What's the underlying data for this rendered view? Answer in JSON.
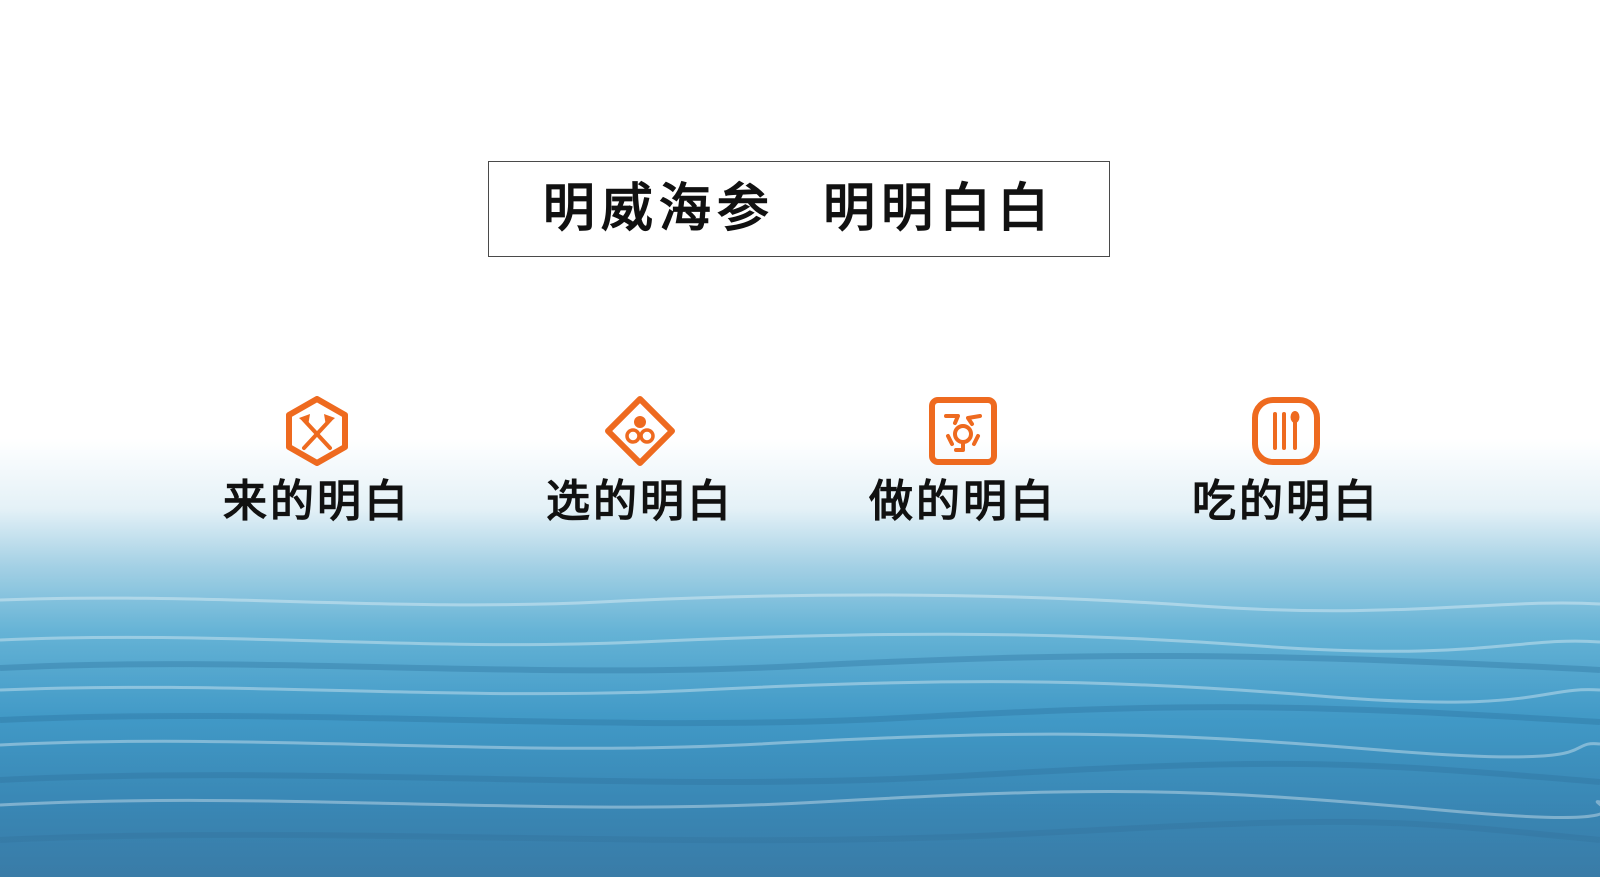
{
  "title": "明威海参  明明白白",
  "accent_color": "#ee6a1f",
  "features": [
    {
      "label": "来的明白",
      "icon": "crossed-axes-icon"
    },
    {
      "label": "选的明白",
      "icon": "sea-cucumber-select-icon"
    },
    {
      "label": "做的明白",
      "icon": "processing-icon"
    },
    {
      "label": "吃的明白",
      "icon": "fork-spoon-icon"
    }
  ]
}
